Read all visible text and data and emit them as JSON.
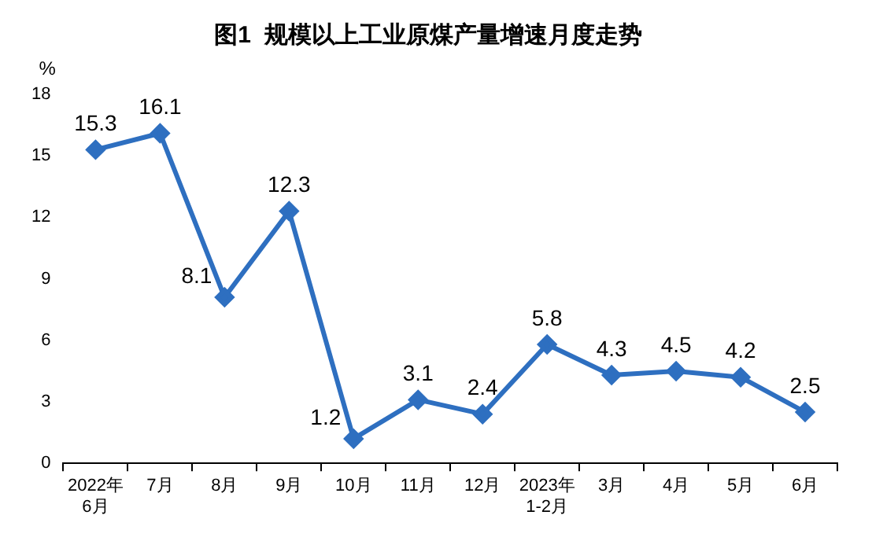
{
  "chart_data": {
    "type": "line",
    "title": "图1  规模以上工业原煤产量增速月度走势",
    "ylabel": "%",
    "categories": [
      "2022年\n6月",
      "7月",
      "8月",
      "9月",
      "10月",
      "11月",
      "12月",
      "2023年\n1-2月",
      "3月",
      "4月",
      "5月",
      "6月"
    ],
    "series": [
      {
        "color": "#2e6fc0",
        "values": [
          15.3,
          16.1,
          8.1,
          12.3,
          1.2,
          3.1,
          2.4,
          5.8,
          4.3,
          4.5,
          4.2,
          2.5
        ]
      }
    ],
    "ylim": [
      0,
      18
    ],
    "yticks": [
      0,
      3,
      6,
      9,
      12,
      15,
      18
    ],
    "grid": false,
    "legend": false,
    "marker": "diamond",
    "line_style": "solid",
    "data_labels": true
  }
}
